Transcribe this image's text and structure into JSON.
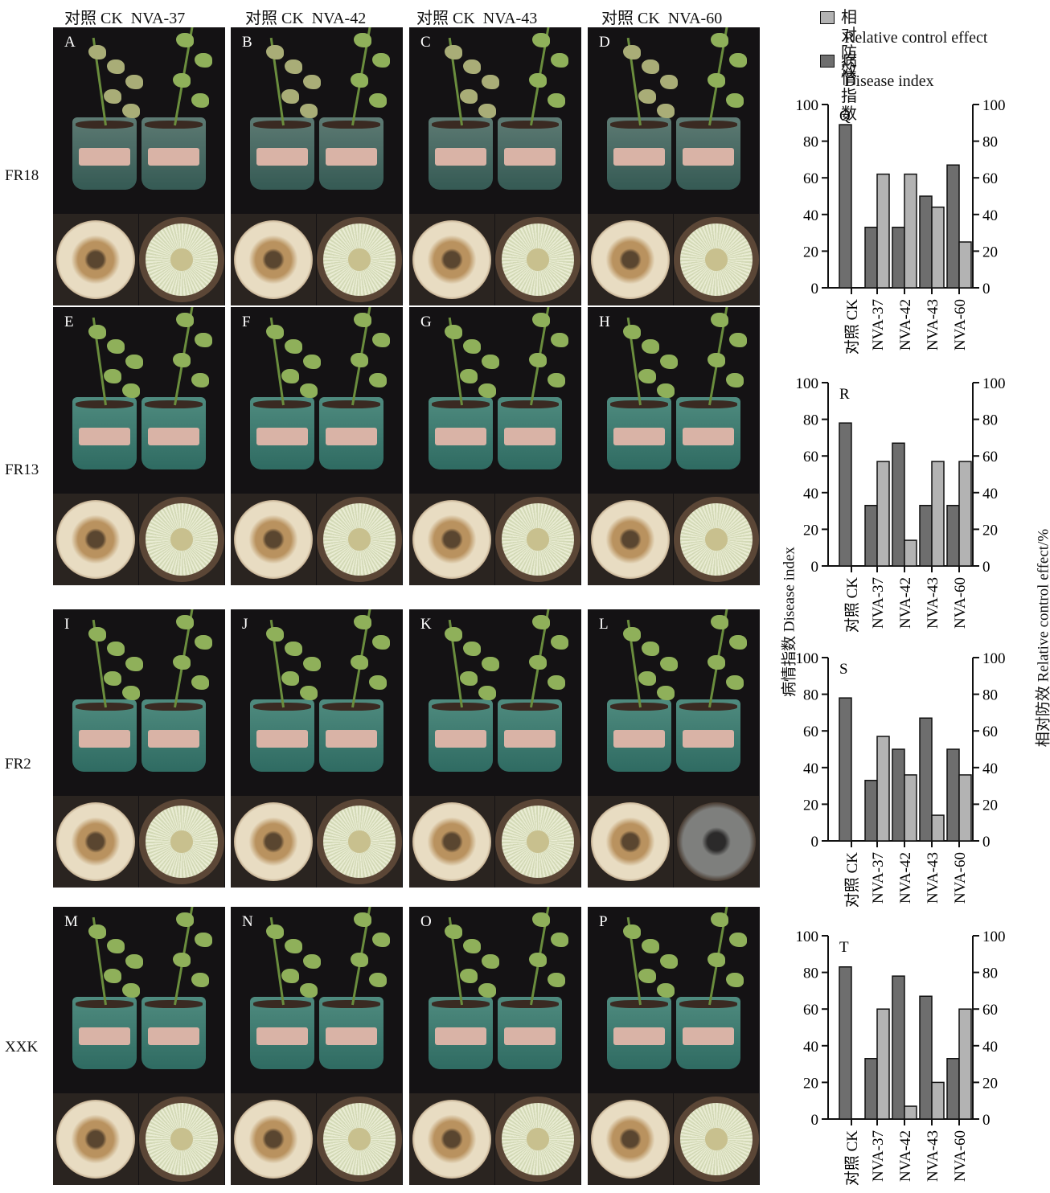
{
  "column_headers": [
    {
      "ck": "对照 CK",
      "trt": "NVA-37"
    },
    {
      "ck": "对照 CK",
      "trt": "NVA-42"
    },
    {
      "ck": "对照 CK",
      "trt": "NVA-43"
    },
    {
      "ck": "对照 CK",
      "trt": "NVA-60"
    }
  ],
  "row_labels": [
    "FR18",
    "FR13",
    "FR2",
    "XXK"
  ],
  "panel_letters": [
    "A",
    "B",
    "C",
    "D",
    "E",
    "F",
    "G",
    "H",
    "I",
    "J",
    "K",
    "L",
    "M",
    "N",
    "O",
    "P"
  ],
  "legend": [
    {
      "zh": "相对防效",
      "en": "Relative control effect",
      "color": "#b3b3b3"
    },
    {
      "zh": "病情指数",
      "en": "Disease index",
      "color": "#6e6e6e"
    }
  ],
  "left_axis_label": "病情指数 Disease index",
  "right_axis_label": "相对防效 Relative control effect/%",
  "colors": {
    "disease_index": "#6e6e6e",
    "relative_control": "#b3b3b3"
  },
  "chart_data": [
    {
      "type": "bar",
      "panel": "Q",
      "categories": [
        "对照 CK",
        "NVA-37",
        "NVA-42",
        "NVA-43",
        "NVA-60"
      ],
      "ylim": [
        0,
        100
      ],
      "y2lim": [
        0,
        100
      ],
      "yticks": [
        0,
        20,
        40,
        60,
        80,
        100
      ],
      "series": [
        {
          "name": "病情指数",
          "values": [
            89,
            33,
            33,
            50,
            67
          ]
        },
        {
          "name": "相对防效",
          "values": [
            null,
            62,
            62,
            44,
            25
          ]
        }
      ]
    },
    {
      "type": "bar",
      "panel": "R",
      "categories": [
        "对照 CK",
        "NVA-37",
        "NVA-42",
        "NVA-43",
        "NVA-60"
      ],
      "ylim": [
        0,
        100
      ],
      "y2lim": [
        0,
        100
      ],
      "yticks": [
        0,
        20,
        40,
        60,
        80,
        100
      ],
      "series": [
        {
          "name": "病情指数",
          "values": [
            78,
            33,
            67,
            33,
            33
          ]
        },
        {
          "name": "相对防效",
          "values": [
            null,
            57,
            14,
            57,
            57
          ]
        }
      ]
    },
    {
      "type": "bar",
      "panel": "S",
      "categories": [
        "对照 CK",
        "NVA-37",
        "NVA-42",
        "NVA-43",
        "NVA-60"
      ],
      "ylim": [
        0,
        100
      ],
      "y2lim": [
        0,
        100
      ],
      "yticks": [
        0,
        20,
        40,
        60,
        80,
        100
      ],
      "series": [
        {
          "name": "病情指数",
          "values": [
            78,
            33,
            50,
            67,
            50
          ]
        },
        {
          "name": "相对防效",
          "values": [
            null,
            57,
            36,
            14,
            36
          ]
        }
      ]
    },
    {
      "type": "bar",
      "panel": "T",
      "categories": [
        "对照 CK",
        "NVA-37",
        "NVA-42",
        "NVA-43",
        "NVA-60"
      ],
      "ylim": [
        0,
        100
      ],
      "y2lim": [
        0,
        100
      ],
      "yticks": [
        0,
        20,
        40,
        60,
        80,
        100
      ],
      "series": [
        {
          "name": "病情指数",
          "values": [
            83,
            33,
            78,
            67,
            33
          ]
        },
        {
          "name": "相对防效",
          "values": [
            null,
            60,
            7,
            20,
            60
          ]
        }
      ]
    }
  ]
}
